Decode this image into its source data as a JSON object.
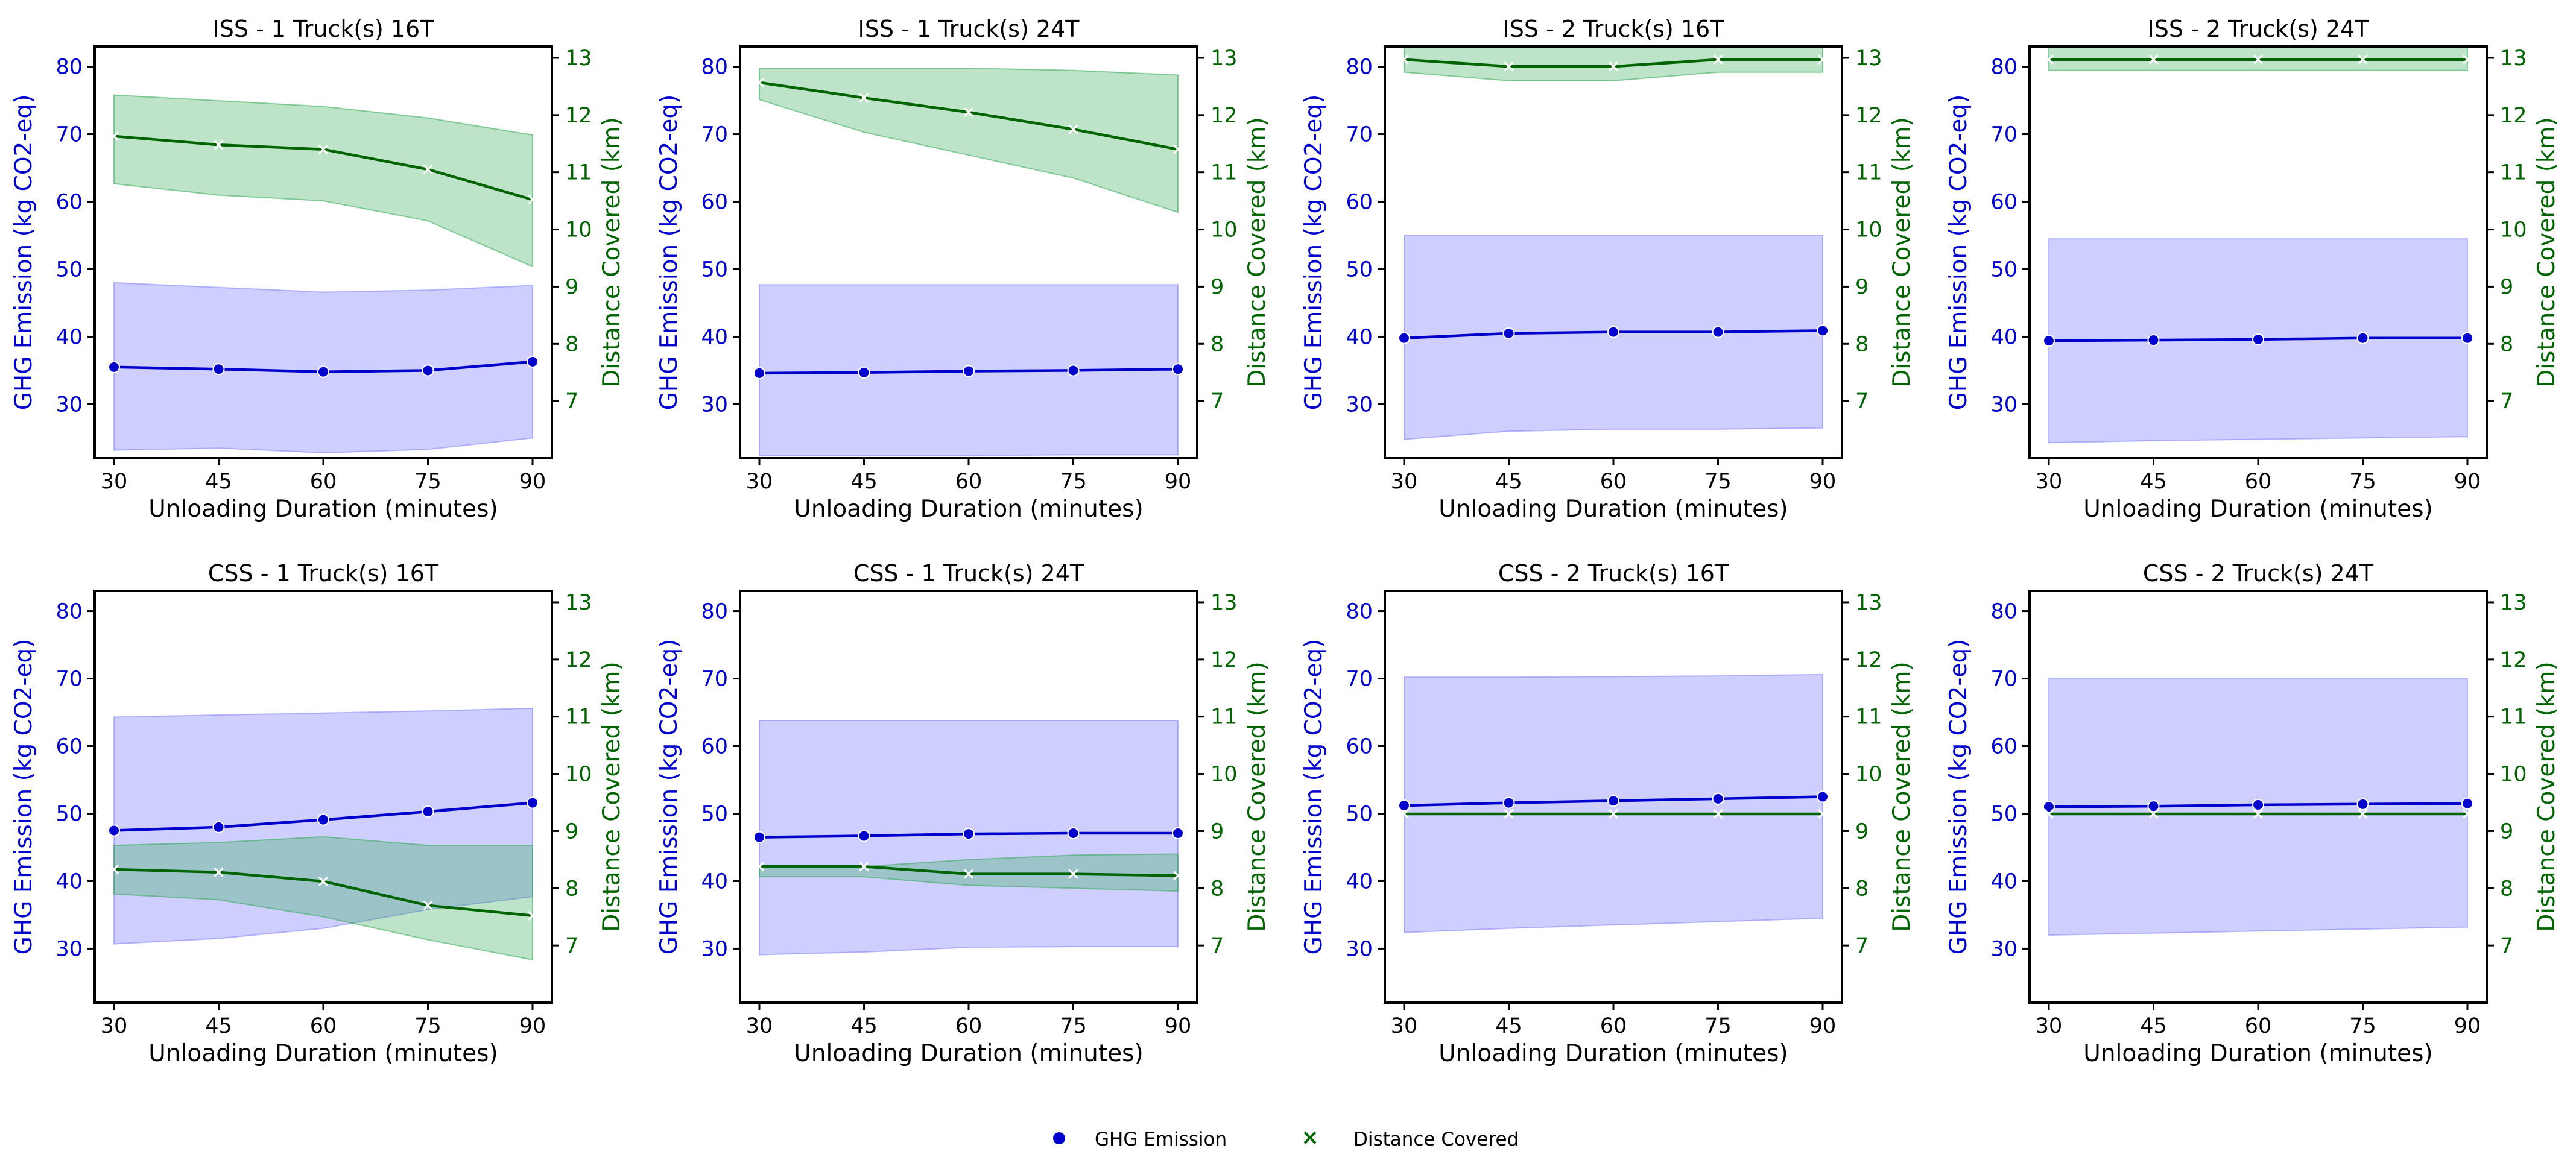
{
  "legend": {
    "ghg_label": "GHG Emission",
    "dist_label": "Distance Covered"
  },
  "colors": {
    "ghg": "#0000cc",
    "ghg_band": "#8080ff",
    "dist": "#006400",
    "dist_band": "#33aa55"
  },
  "chart_data": [
    {
      "type": "line",
      "title": "ISS - 1 Truck(s) 16T",
      "xlabel": "Unloading Duration (minutes)",
      "ylabel_left": "GHG Emission (kg CO2-eq)",
      "ylabel_right": "Distance Covered (km)",
      "x": [
        30,
        45,
        60,
        75,
        90
      ],
      "ylim_left": [
        22,
        83
      ],
      "ylim_right": [
        6.0,
        13.2
      ],
      "yticks_left": [
        30,
        40,
        50,
        60,
        70,
        80
      ],
      "yticks_right": [
        7,
        8,
        9,
        10,
        11,
        12,
        13
      ],
      "ghg": {
        "values": [
          35.5,
          35.2,
          34.8,
          35.0,
          36.3
        ],
        "lower": [
          23.2,
          23.5,
          22.8,
          23.3,
          25.0
        ],
        "upper": [
          48.0,
          47.3,
          46.6,
          46.9,
          47.6
        ]
      },
      "distance": {
        "values": [
          11.63,
          11.48,
          11.4,
          11.05,
          10.52
        ],
        "lower": [
          10.8,
          10.6,
          10.5,
          10.15,
          9.35
        ],
        "upper": [
          12.35,
          12.25,
          12.15,
          11.95,
          11.65
        ]
      }
    },
    {
      "type": "line",
      "title": "ISS - 1 Truck(s) 24T",
      "xlabel": "Unloading Duration (minutes)",
      "ylabel_left": "GHG Emission (kg CO2-eq)",
      "ylabel_right": "Distance Covered (km)",
      "x": [
        30,
        45,
        60,
        75,
        90
      ],
      "ylim_left": [
        22,
        83
      ],
      "ylim_right": [
        6.0,
        13.2
      ],
      "yticks_left": [
        30,
        40,
        50,
        60,
        70,
        80
      ],
      "yticks_right": [
        7,
        8,
        9,
        10,
        11,
        12,
        13
      ],
      "ghg": {
        "values": [
          34.6,
          34.7,
          34.9,
          35.0,
          35.2
        ],
        "lower": [
          22.4,
          22.4,
          22.4,
          22.5,
          22.5
        ],
        "upper": [
          47.7,
          47.7,
          47.7,
          47.7,
          47.7
        ]
      },
      "distance": {
        "values": [
          12.57,
          12.3,
          12.05,
          11.75,
          11.4
        ],
        "lower": [
          12.27,
          11.7,
          11.3,
          10.9,
          10.3
        ],
        "upper": [
          12.82,
          12.82,
          12.82,
          12.78,
          12.7
        ]
      }
    },
    {
      "type": "line",
      "title": "ISS - 2 Truck(s) 16T",
      "xlabel": "Unloading Duration (minutes)",
      "ylabel_left": "GHG Emission (kg CO2-eq)",
      "ylabel_right": "Distance Covered (km)",
      "x": [
        30,
        45,
        60,
        75,
        90
      ],
      "ylim_left": [
        22,
        83
      ],
      "ylim_right": [
        6.0,
        13.2
      ],
      "yticks_left": [
        30,
        40,
        50,
        60,
        70,
        80
      ],
      "yticks_right": [
        7,
        8,
        9,
        10,
        11,
        12,
        13
      ],
      "ghg": {
        "values": [
          39.8,
          40.5,
          40.7,
          40.7,
          40.9
        ],
        "lower": [
          24.8,
          26.0,
          26.3,
          26.3,
          26.5
        ],
        "upper": [
          55.0,
          55.0,
          55.0,
          55.0,
          55.0
        ]
      },
      "distance": {
        "values": [
          12.97,
          12.85,
          12.85,
          12.97,
          12.97
        ],
        "lower": [
          12.75,
          12.6,
          12.6,
          12.75,
          12.75
        ],
        "upper": [
          13.2,
          13.2,
          13.2,
          13.2,
          13.2
        ]
      }
    },
    {
      "type": "line",
      "title": "ISS - 2 Truck(s) 24T",
      "xlabel": "Unloading Duration (minutes)",
      "ylabel_left": "GHG Emission (kg CO2-eq)",
      "ylabel_right": "Distance Covered (km)",
      "x": [
        30,
        45,
        60,
        75,
        90
      ],
      "ylim_left": [
        22,
        83
      ],
      "ylim_right": [
        6.0,
        13.2
      ],
      "yticks_left": [
        30,
        40,
        50,
        60,
        70,
        80
      ],
      "yticks_right": [
        7,
        8,
        9,
        10,
        11,
        12,
        13
      ],
      "ghg": {
        "values": [
          39.4,
          39.5,
          39.6,
          39.8,
          39.8
        ],
        "lower": [
          24.3,
          24.6,
          24.8,
          25.0,
          25.2
        ],
        "upper": [
          54.5,
          54.5,
          54.5,
          54.5,
          54.5
        ]
      },
      "distance": {
        "values": [
          12.97,
          12.97,
          12.97,
          12.97,
          12.97
        ],
        "lower": [
          12.78,
          12.78,
          12.78,
          12.78,
          12.78
        ],
        "upper": [
          13.2,
          13.2,
          13.2,
          13.2,
          13.2
        ]
      }
    },
    {
      "type": "line",
      "title": "CSS - 1 Truck(s) 16T",
      "xlabel": "Unloading Duration (minutes)",
      "ylabel_left": "GHG Emission (kg CO2-eq)",
      "ylabel_right": "Distance Covered (km)",
      "x": [
        30,
        45,
        60,
        75,
        90
      ],
      "ylim_left": [
        22,
        83
      ],
      "ylim_right": [
        6.0,
        13.2
      ],
      "yticks_left": [
        30,
        40,
        50,
        60,
        70,
        80
      ],
      "yticks_right": [
        7,
        8,
        9,
        10,
        11,
        12,
        13
      ],
      "ghg": {
        "values": [
          47.5,
          48.0,
          49.1,
          50.3,
          51.6
        ],
        "lower": [
          30.7,
          31.5,
          33.0,
          35.8,
          37.7
        ],
        "upper": [
          64.3,
          64.6,
          64.9,
          65.2,
          65.6
        ]
      },
      "distance": {
        "values": [
          8.33,
          8.28,
          8.12,
          7.7,
          7.52
        ],
        "lower": [
          7.9,
          7.8,
          7.5,
          7.1,
          6.75
        ],
        "upper": [
          8.75,
          8.8,
          8.9,
          8.75,
          8.75
        ]
      }
    },
    {
      "type": "line",
      "title": "CSS - 1 Truck(s) 24T",
      "xlabel": "Unloading Duration (minutes)",
      "ylabel_left": "GHG Emission (kg CO2-eq)",
      "ylabel_right": "Distance Covered (km)",
      "x": [
        30,
        45,
        60,
        75,
        90
      ],
      "ylim_left": [
        22,
        83
      ],
      "ylim_right": [
        6.0,
        13.2
      ],
      "yticks_left": [
        30,
        40,
        50,
        60,
        70,
        80
      ],
      "yticks_right": [
        7,
        8,
        9,
        10,
        11,
        12,
        13
      ],
      "ghg": {
        "values": [
          46.5,
          46.7,
          47.0,
          47.1,
          47.1
        ],
        "lower": [
          29.1,
          29.5,
          30.2,
          30.3,
          30.3
        ],
        "upper": [
          63.8,
          63.8,
          63.8,
          63.8,
          63.8
        ]
      },
      "distance": {
        "values": [
          8.38,
          8.38,
          8.25,
          8.25,
          8.22
        ],
        "lower": [
          8.2,
          8.2,
          8.05,
          8.0,
          7.95
        ],
        "upper": [
          8.38,
          8.38,
          8.5,
          8.58,
          8.6
        ]
      }
    },
    {
      "type": "line",
      "title": "CSS - 2 Truck(s) 16T",
      "xlabel": "Unloading Duration (minutes)",
      "ylabel_left": "GHG Emission (kg CO2-eq)",
      "ylabel_right": "Distance Covered (km)",
      "x": [
        30,
        45,
        60,
        75,
        90
      ],
      "ylim_left": [
        22,
        83
      ],
      "ylim_right": [
        6.0,
        13.2
      ],
      "yticks_left": [
        30,
        40,
        50,
        60,
        70,
        80
      ],
      "yticks_right": [
        7,
        8,
        9,
        10,
        11,
        12,
        13
      ],
      "ghg": {
        "values": [
          51.2,
          51.6,
          51.9,
          52.2,
          52.5
        ],
        "lower": [
          32.4,
          33.0,
          33.5,
          34.0,
          34.5
        ],
        "upper": [
          70.2,
          70.2,
          70.3,
          70.4,
          70.6
        ]
      },
      "distance": {
        "values": [
          9.3,
          9.3,
          9.3,
          9.3,
          9.3
        ],
        "lower": [
          9.3,
          9.3,
          9.3,
          9.3,
          9.3
        ],
        "upper": [
          9.3,
          9.3,
          9.3,
          9.3,
          9.3
        ]
      }
    },
    {
      "type": "line",
      "title": "CSS - 2 Truck(s) 24T",
      "xlabel": "Unloading Duration (minutes)",
      "ylabel_left": "GHG Emission (kg CO2-eq)",
      "ylabel_right": "Distance Covered (km)",
      "x": [
        30,
        45,
        60,
        75,
        90
      ],
      "ylim_left": [
        22,
        83
      ],
      "ylim_right": [
        6.0,
        13.2
      ],
      "yticks_left": [
        30,
        40,
        50,
        60,
        70,
        80
      ],
      "yticks_right": [
        7,
        8,
        9,
        10,
        11,
        12,
        13
      ],
      "ghg": {
        "values": [
          51.0,
          51.1,
          51.3,
          51.4,
          51.5
        ],
        "lower": [
          32.0,
          32.3,
          32.6,
          32.9,
          33.2
        ],
        "upper": [
          70.0,
          70.0,
          70.0,
          70.0,
          70.0
        ]
      },
      "distance": {
        "values": [
          9.3,
          9.3,
          9.3,
          9.3,
          9.3
        ],
        "lower": [
          9.3,
          9.3,
          9.3,
          9.3,
          9.3
        ],
        "upper": [
          9.3,
          9.3,
          9.3,
          9.3,
          9.3
        ]
      }
    }
  ]
}
